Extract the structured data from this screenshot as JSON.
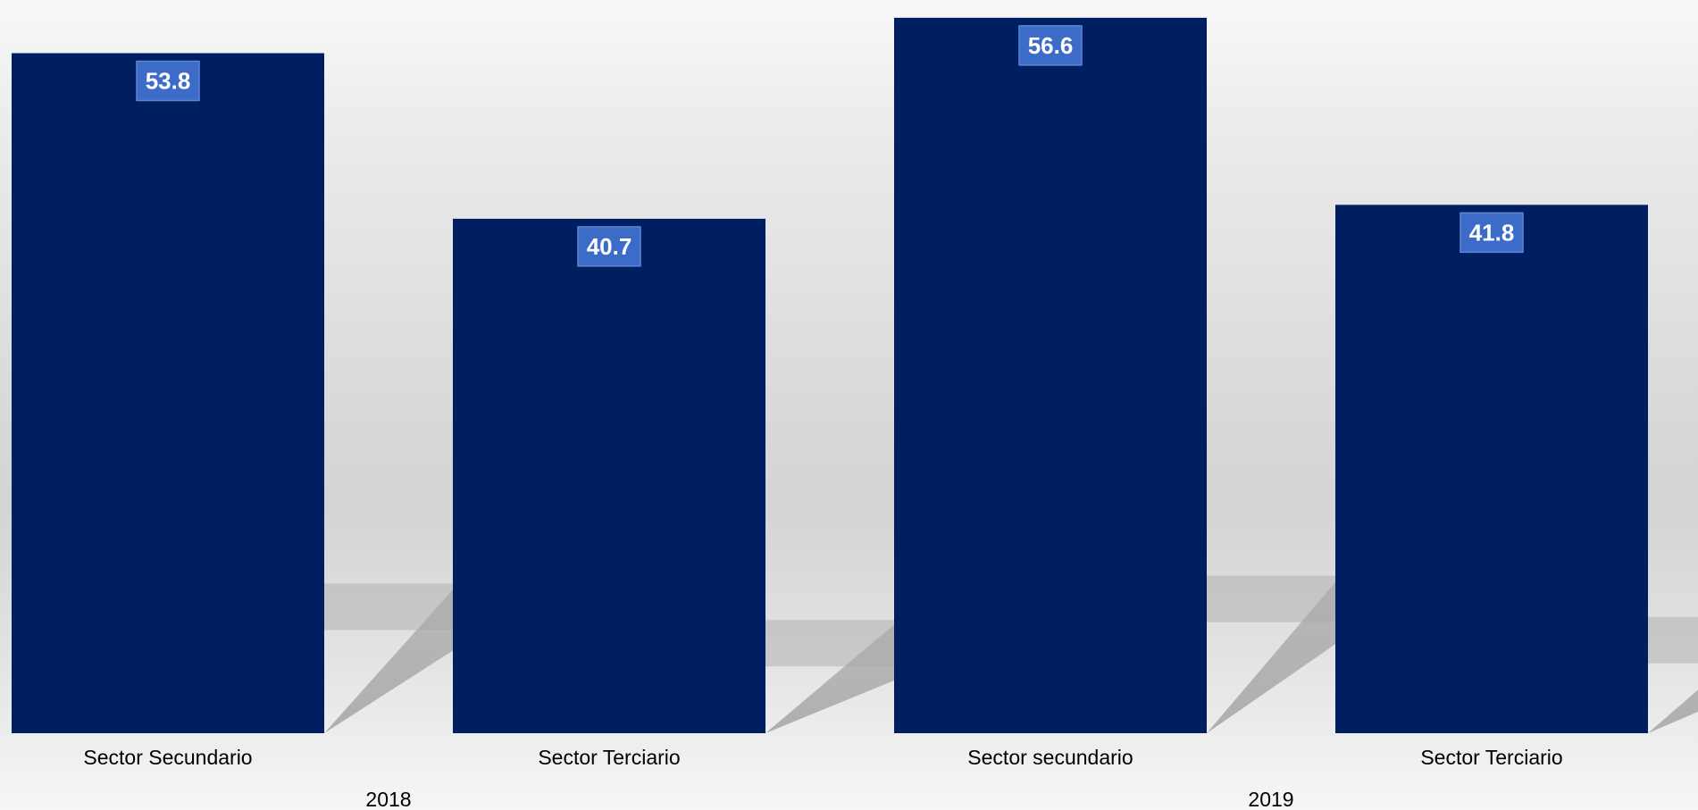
{
  "chart_data": {
    "type": "bar",
    "categories": [
      "Sector Secundario",
      "Sector Terciario",
      "Sector secundario",
      "Sector Terciario"
    ],
    "groups": [
      {
        "label": "2018",
        "categories": [
          "Sector Secundario",
          "Sector Terciario"
        ]
      },
      {
        "label": "2019",
        "categories": [
          "Sector secundario",
          "Sector Terciario"
        ]
      }
    ],
    "values": [
      53.8,
      40.7,
      56.6,
      41.8
    ],
    "value_labels": [
      "53.8",
      "40.7",
      "56.6",
      "41.8"
    ],
    "ylim": [
      0,
      57.3
    ],
    "axes_visible": false,
    "grid": false,
    "legend": "none",
    "colors": {
      "bar": "#001f60",
      "label_box": "#3d6cc8",
      "label_box_border": "#5c86d6",
      "label_text": "#ffffff",
      "axis_text": "#000000",
      "shadow": "#9a9a9a"
    }
  }
}
